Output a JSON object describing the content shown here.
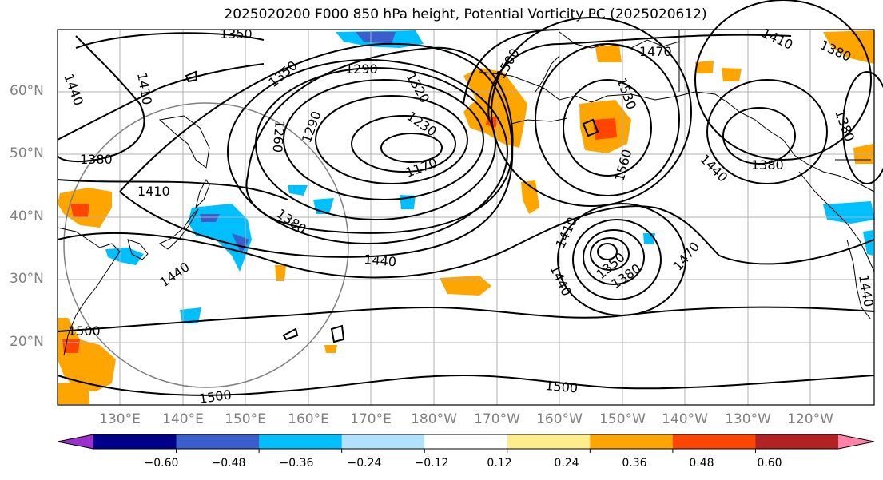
{
  "title": "2025020200 F000 850 hPa height, Potential Vorticity PC (2025020612)",
  "lat_labels": [
    "60°N",
    "50°N",
    "40°N",
    "30°N",
    "20°N"
  ],
  "lon_labels": [
    "130°E",
    "140°E",
    "150°E",
    "160°E",
    "170°E",
    "180°W",
    "170°W",
    "160°W",
    "150°W",
    "140°W",
    "130°W",
    "120°W"
  ],
  "contour_labels": [
    "1350",
    "1440",
    "1410",
    "1380",
    "1410",
    "1350",
    "1290",
    "1320",
    "1260",
    "1230",
    "1290",
    "1170",
    "1500",
    "1530",
    "1470",
    "1410",
    "1380",
    "1560",
    "1440",
    "1380",
    "1380",
    "1440",
    "1410",
    "1350",
    "1380",
    "1470",
    "1440",
    "1440",
    "1380",
    "1440",
    "1500",
    "1500",
    "1500",
    "1380"
  ],
  "colorbar": {
    "ticks": [
      "−0.60",
      "−0.48",
      "−0.36",
      "−0.24",
      "−0.12",
      "0.12",
      "0.24",
      "0.36",
      "0.48",
      "0.60"
    ],
    "colors": [
      "#9932cc",
      "#00008b",
      "#3a5fcd",
      "#00bfff",
      "#b0e2ff",
      "#ffffff",
      "#ffec8b",
      "#ffa500",
      "#ff4500",
      "#b22222",
      "#ff82ab"
    ]
  }
}
